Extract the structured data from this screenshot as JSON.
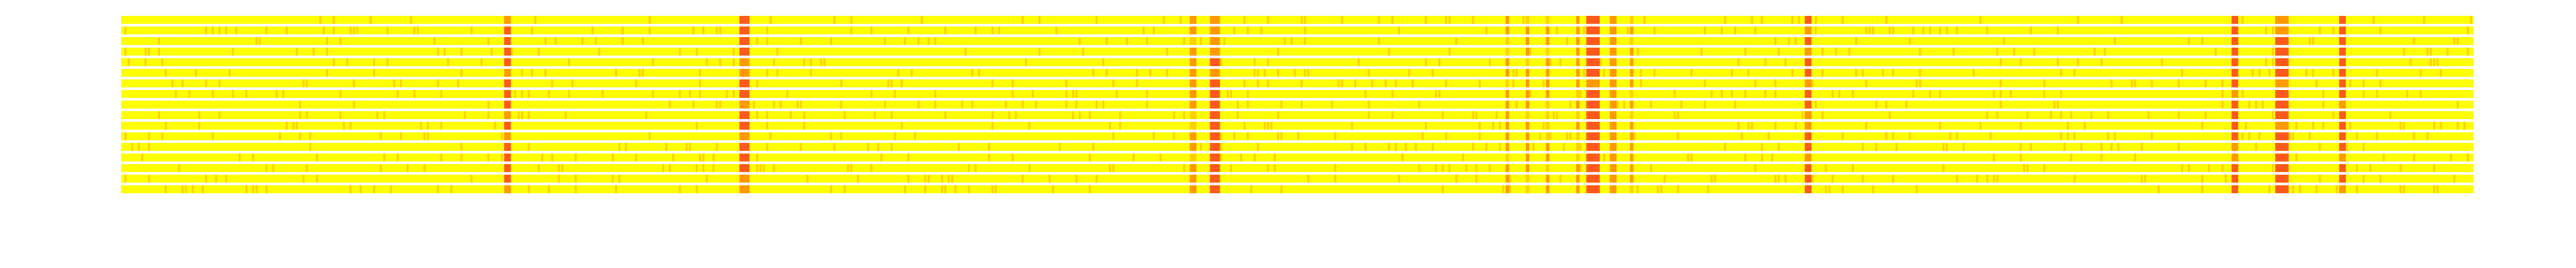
{
  "chart_data": {
    "type": "heatmap",
    "rows": 17,
    "columns": 700,
    "colormap": [
      "#ffff00",
      "#ffd000",
      "#ff9900",
      "#ff5a1e"
    ],
    "value_range": [
      0,
      1
    ],
    "baseline_value": 0,
    "grid": false,
    "legend": "none",
    "hot_columns": [
      {
        "col": 114,
        "width": 2,
        "value": 0.9
      },
      {
        "col": 184,
        "width": 3,
        "value": 0.95
      },
      {
        "col": 318,
        "width": 2,
        "value": 0.55
      },
      {
        "col": 324,
        "width": 3,
        "value": 0.85
      },
      {
        "col": 412,
        "width": 1,
        "value": 0.55
      },
      {
        "col": 418,
        "width": 1,
        "value": 0.5
      },
      {
        "col": 424,
        "width": 1,
        "value": 0.5
      },
      {
        "col": 433,
        "width": 1,
        "value": 0.55
      },
      {
        "col": 436,
        "width": 4,
        "value": 0.9
      },
      {
        "col": 443,
        "width": 2,
        "value": 0.65
      },
      {
        "col": 449,
        "width": 1,
        "value": 0.5
      },
      {
        "col": 501,
        "width": 2,
        "value": 0.85
      },
      {
        "col": 628,
        "width": 2,
        "value": 0.85
      },
      {
        "col": 641,
        "width": 4,
        "value": 0.95
      },
      {
        "col": 660,
        "width": 2,
        "value": 0.9
      }
    ],
    "noise_density": 0.08,
    "noise_value": 0.3
  }
}
